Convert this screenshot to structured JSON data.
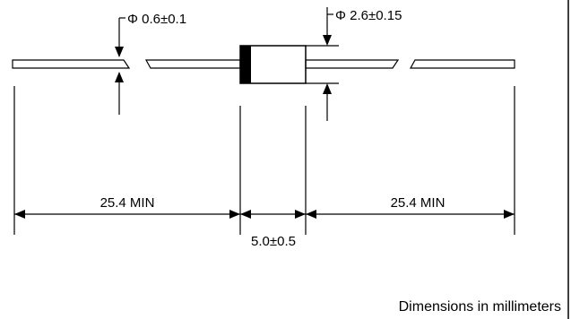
{
  "labels": {
    "lead_diameter": "Φ 0.6±0.1",
    "body_diameter": "Φ 2.6±0.15",
    "lead_length_left": "25.4 MIN",
    "lead_length_right": "25.4 MIN",
    "body_length": "5.0±0.5",
    "units_note": "Dimensions in millimeters"
  },
  "colors": {
    "ink": "#000000",
    "background": "#ffffff"
  }
}
